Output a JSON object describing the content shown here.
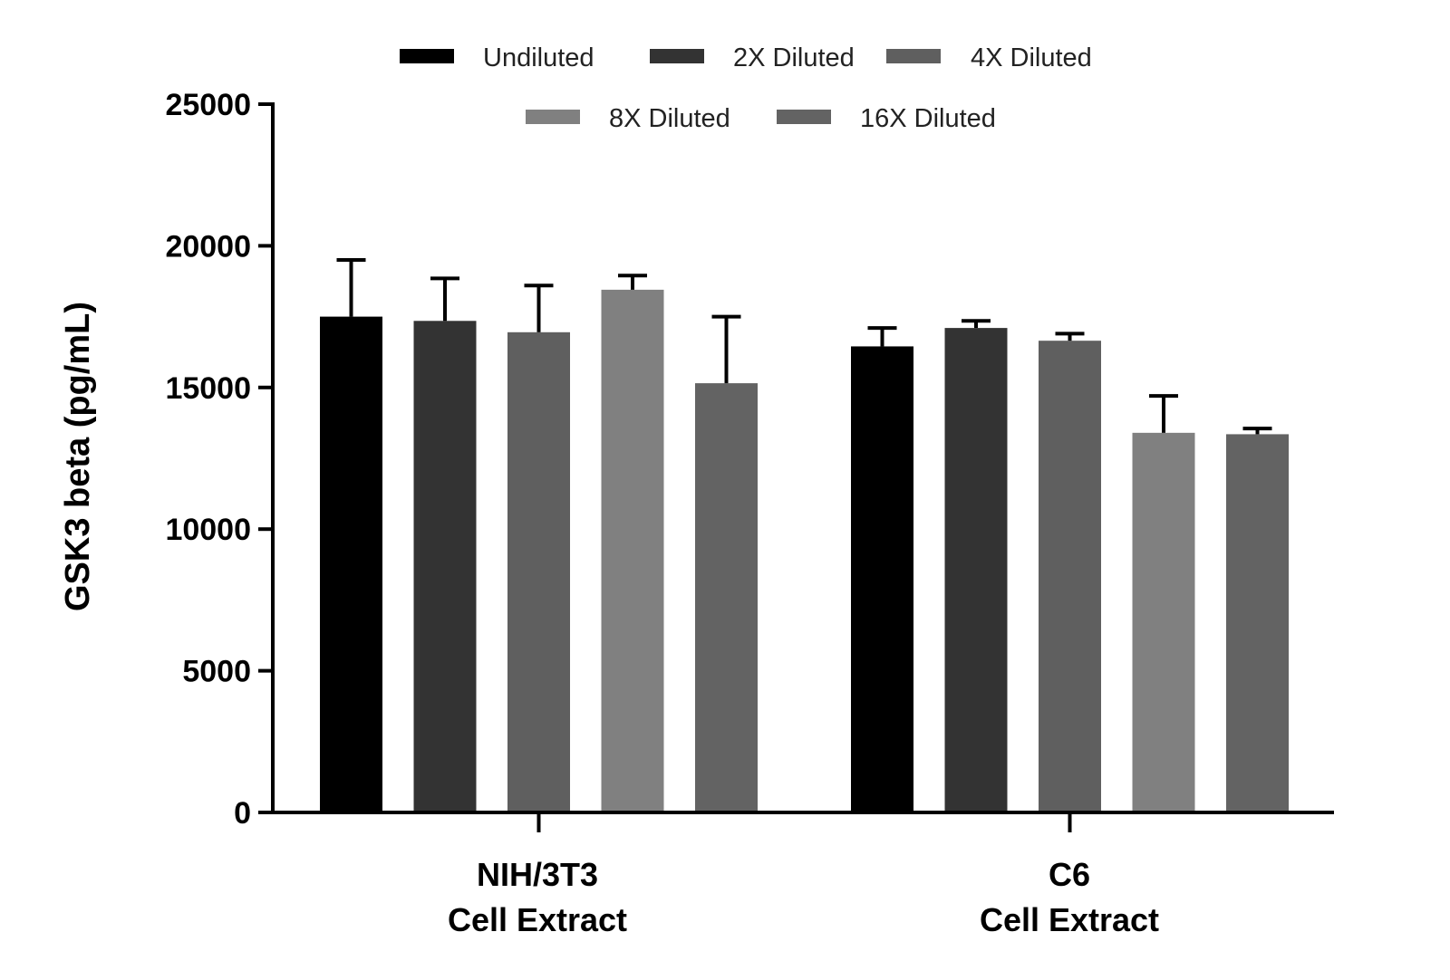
{
  "chart_data": {
    "type": "bar",
    "title": "",
    "xlabel": "",
    "ylabel": "GSK3 beta (pg/mL)",
    "ylim": [
      0,
      25000
    ],
    "yticks": [
      0,
      5000,
      10000,
      15000,
      20000,
      25000
    ],
    "ytick_labels": [
      "0",
      "5000",
      "10000",
      "15000",
      "20000",
      "25000"
    ],
    "categories": [
      {
        "line1": "NIH/3T3",
        "line2": "Cell Extract"
      },
      {
        "line1": "C6",
        "line2": "Cell Extract"
      }
    ],
    "series": [
      {
        "name": "Undiluted",
        "color": "#000000",
        "values": [
          17500,
          16450
        ],
        "errors": [
          2000,
          650
        ]
      },
      {
        "name": "2X Diluted",
        "color": "#333333",
        "values": [
          17350,
          17100
        ],
        "errors": [
          1500,
          250
        ]
      },
      {
        "name": "4X Diluted",
        "color": "#5f5f5f",
        "values": [
          16950,
          16650
        ],
        "errors": [
          1650,
          250
        ]
      },
      {
        "name": "8X Diluted",
        "color": "#808080",
        "values": [
          18450,
          13400
        ],
        "errors": [
          500,
          1300
        ]
      },
      {
        "name": "16X Diluted",
        "color": "#636363",
        "values": [
          15150,
          13350
        ],
        "errors": [
          2350,
          200
        ]
      }
    ],
    "legend_position": "top",
    "grid": false
  }
}
